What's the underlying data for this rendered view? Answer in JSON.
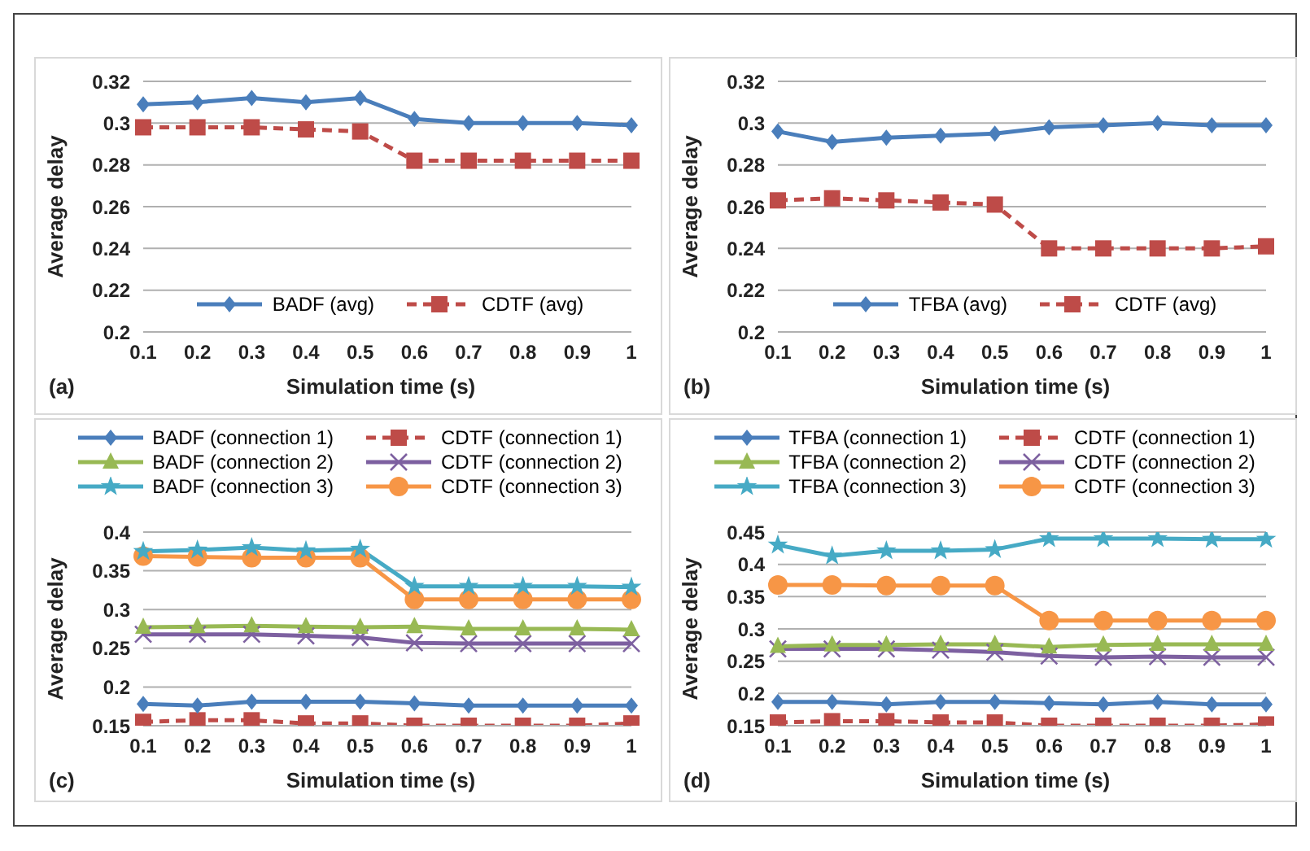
{
  "chart_data": [
    {
      "type": "line",
      "xlabel": "Simulation time (s)",
      "ylabel": "Average delay",
      "annotations": [
        "(a)"
      ],
      "categories": [
        "0.1",
        "0.2",
        "0.3",
        "0.4",
        "0.5",
        "0.6",
        "0.7",
        "0.8",
        "0.9",
        "1"
      ],
      "ylim": [
        0.2,
        0.32
      ],
      "yticks": [
        0.2,
        0.22,
        0.24,
        0.26,
        0.28,
        0.3,
        0.32
      ],
      "grid": "y",
      "legend": "bottom",
      "series": [
        {
          "name": "BADF (avg)",
          "color": "#4a7ebb",
          "marker": "diamond",
          "line_style": "solid",
          "values": [
            0.309,
            0.31,
            0.312,
            0.31,
            0.312,
            0.302,
            0.3,
            0.3,
            0.3,
            0.299
          ]
        },
        {
          "name": "CDTF (avg)",
          "color": "#be4b48",
          "marker": "square",
          "line_style": "dashed",
          "values": [
            0.298,
            0.298,
            0.298,
            0.297,
            0.296,
            0.282,
            0.282,
            0.282,
            0.282,
            0.282
          ]
        }
      ]
    },
    {
      "type": "line",
      "xlabel": "Simulation time (s)",
      "ylabel": "Average delay",
      "annotations": [
        "(b)"
      ],
      "categories": [
        "0.1",
        "0.2",
        "0.3",
        "0.4",
        "0.5",
        "0.6",
        "0.7",
        "0.8",
        "0.9",
        "1"
      ],
      "ylim": [
        0.2,
        0.32
      ],
      "yticks": [
        0.2,
        0.22,
        0.24,
        0.26,
        0.28,
        0.3,
        0.32
      ],
      "grid": "y",
      "legend": "bottom",
      "series": [
        {
          "name": "TFBA (avg)",
          "color": "#4a7ebb",
          "marker": "diamond",
          "line_style": "solid",
          "values": [
            0.296,
            0.291,
            0.293,
            0.294,
            0.295,
            0.298,
            0.299,
            0.3,
            0.299,
            0.299
          ]
        },
        {
          "name": "CDTF (avg)",
          "color": "#be4b48",
          "marker": "square",
          "line_style": "dashed",
          "values": [
            0.263,
            0.264,
            0.263,
            0.262,
            0.261,
            0.24,
            0.24,
            0.24,
            0.24,
            0.241
          ]
        }
      ]
    },
    {
      "type": "line",
      "xlabel": "Simulation time (s)",
      "ylabel": "Average delay",
      "annotations": [
        "(c)"
      ],
      "categories": [
        "0.1",
        "0.2",
        "0.3",
        "0.4",
        "0.5",
        "0.6",
        "0.7",
        "0.8",
        "0.9",
        "1"
      ],
      "ylim": [
        0.15,
        0.4
      ],
      "yticks": [
        0.15,
        0.2,
        0.25,
        0.3,
        0.35,
        0.4
      ],
      "grid": "y",
      "legend": "top",
      "series": [
        {
          "name": "BADF (connection 1)",
          "color": "#4a7ebb",
          "marker": "diamond",
          "line_style": "solid",
          "values": [
            0.178,
            0.176,
            0.181,
            0.181,
            0.181,
            0.179,
            0.176,
            0.176,
            0.176,
            0.176
          ]
        },
        {
          "name": "CDTF (connection 1)",
          "color": "#be4b48",
          "marker": "square",
          "line_style": "dashed",
          "values": [
            0.155,
            0.157,
            0.157,
            0.153,
            0.153,
            0.15,
            0.15,
            0.15,
            0.15,
            0.153
          ]
        },
        {
          "name": "BADF (connection 2)",
          "color": "#98b954",
          "marker": "triangle",
          "line_style": "solid",
          "values": [
            0.277,
            0.278,
            0.279,
            0.278,
            0.277,
            0.278,
            0.275,
            0.275,
            0.275,
            0.274
          ]
        },
        {
          "name": "CDTF (connection 2)",
          "color": "#7d60a0",
          "marker": "cross",
          "line_style": "solid",
          "values": [
            0.268,
            0.268,
            0.268,
            0.266,
            0.264,
            0.257,
            0.256,
            0.256,
            0.256,
            0.256
          ]
        },
        {
          "name": "BADF (connection 3)",
          "color": "#46aac5",
          "marker": "star",
          "line_style": "solid",
          "values": [
            0.375,
            0.377,
            0.38,
            0.376,
            0.378,
            0.33,
            0.33,
            0.33,
            0.33,
            0.329
          ]
        },
        {
          "name": "CDTF (connection 3)",
          "color": "#f79646",
          "marker": "circle",
          "line_style": "solid",
          "values": [
            0.369,
            0.368,
            0.367,
            0.367,
            0.367,
            0.313,
            0.313,
            0.313,
            0.313,
            0.313
          ]
        }
      ]
    },
    {
      "type": "line",
      "xlabel": "Simulation time (s)",
      "ylabel": "Average delay",
      "annotations": [
        "(d)"
      ],
      "categories": [
        "0.1",
        "0.2",
        "0.3",
        "0.4",
        "0.5",
        "0.6",
        "0.7",
        "0.8",
        "0.9",
        "1"
      ],
      "ylim": [
        0.15,
        0.45
      ],
      "yticks": [
        0.15,
        0.2,
        0.25,
        0.3,
        0.35,
        0.4,
        0.45
      ],
      "grid": "y",
      "legend": "top",
      "series": [
        {
          "name": "TFBA (connection 1)",
          "color": "#4a7ebb",
          "marker": "diamond",
          "line_style": "solid",
          "values": [
            0.187,
            0.187,
            0.183,
            0.187,
            0.187,
            0.185,
            0.183,
            0.187,
            0.183,
            0.183
          ]
        },
        {
          "name": "CDTF (connection 1)",
          "color": "#be4b48",
          "marker": "square",
          "line_style": "dashed",
          "values": [
            0.155,
            0.157,
            0.157,
            0.155,
            0.155,
            0.15,
            0.15,
            0.15,
            0.15,
            0.152
          ]
        },
        {
          "name": "TFBA (connection 2)",
          "color": "#98b954",
          "marker": "triangle",
          "line_style": "solid",
          "values": [
            0.273,
            0.275,
            0.275,
            0.276,
            0.276,
            0.272,
            0.275,
            0.276,
            0.276,
            0.276
          ]
        },
        {
          "name": "CDTF (connection 2)",
          "color": "#7d60a0",
          "marker": "cross",
          "line_style": "solid",
          "values": [
            0.269,
            0.269,
            0.269,
            0.267,
            0.264,
            0.258,
            0.256,
            0.257,
            0.256,
            0.256
          ]
        },
        {
          "name": "TFBA (connection 3)",
          "color": "#46aac5",
          "marker": "star",
          "line_style": "solid",
          "values": [
            0.43,
            0.413,
            0.421,
            0.421,
            0.423,
            0.44,
            0.44,
            0.44,
            0.439,
            0.439
          ]
        },
        {
          "name": "CDTF (connection 3)",
          "color": "#f79646",
          "marker": "circle",
          "line_style": "solid",
          "values": [
            0.368,
            0.368,
            0.367,
            0.367,
            0.367,
            0.313,
            0.313,
            0.313,
            0.313,
            0.313
          ]
        }
      ]
    }
  ]
}
